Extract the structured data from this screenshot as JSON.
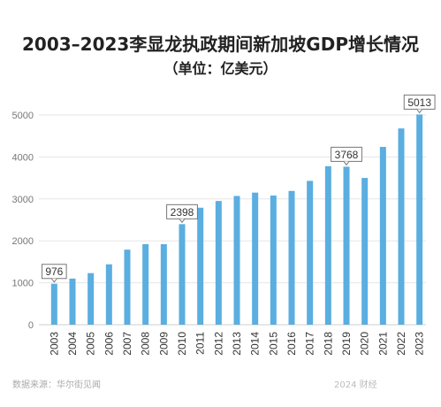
{
  "chart_data": {
    "type": "bar",
    "title": "2003–2023李显龙执政期间新加坡GDP增长情况",
    "subtitle": "（单位：亿美元）",
    "categories": [
      "2003",
      "2004",
      "2005",
      "2006",
      "2007",
      "2008",
      "2009",
      "2010",
      "2011",
      "2012",
      "2013",
      "2014",
      "2015",
      "2016",
      "2017",
      "2018",
      "2019",
      "2020",
      "2021",
      "2022",
      "2023"
    ],
    "values": [
      976,
      1100,
      1230,
      1440,
      1790,
      1920,
      1920,
      2398,
      2790,
      2950,
      3070,
      3150,
      3080,
      3190,
      3430,
      3780,
      3768,
      3500,
      4240,
      4680,
      5013
    ],
    "ylim": [
      0,
      5000
    ],
    "yticks": [
      0,
      1000,
      2000,
      3000,
      4000,
      5000
    ],
    "annotations": [
      {
        "category": "2003",
        "label": "976"
      },
      {
        "category": "2010",
        "label": "2398"
      },
      {
        "category": "2019",
        "label": "3768"
      },
      {
        "category": "2023",
        "label": "5013"
      }
    ],
    "grid": true,
    "bar_color": "#5aaee0"
  },
  "footer": {
    "source": "数据来源：华尔街见闻",
    "watermark": "2024 财经"
  }
}
